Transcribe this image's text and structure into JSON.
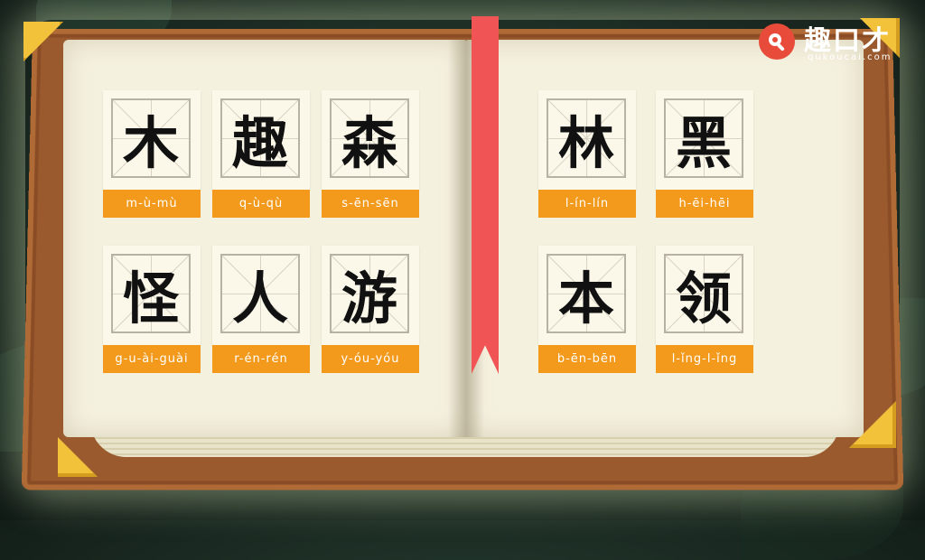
{
  "logo": {
    "name": "趣口才",
    "url": "qukoucai.com"
  },
  "cards": [
    {
      "hanzi": "木",
      "pinyin": "m-ù-mù"
    },
    {
      "hanzi": "趣",
      "pinyin": "q-ù-qù"
    },
    {
      "hanzi": "森",
      "pinyin": "s-ēn-sēn"
    },
    {
      "hanzi": "林",
      "pinyin": "l-ín-lín"
    },
    {
      "hanzi": "黑",
      "pinyin": "h-ēi-hēi"
    },
    {
      "hanzi": "怪",
      "pinyin": "g-u-ài-guài"
    },
    {
      "hanzi": "人",
      "pinyin": "r-én-rén"
    },
    {
      "hanzi": "游",
      "pinyin": "y-óu-yóu"
    },
    {
      "hanzi": "本",
      "pinyin": "b-ēn-bēn"
    },
    {
      "hanzi": "领",
      "pinyin": "l-ǐng-l-ǐng"
    }
  ],
  "colors": {
    "pinyin_bg": "#f39a1c",
    "ribbon": "#f05454",
    "cover": "#9a5a2e",
    "page": "#f5f1df",
    "logo_red": "#e84b3a"
  }
}
